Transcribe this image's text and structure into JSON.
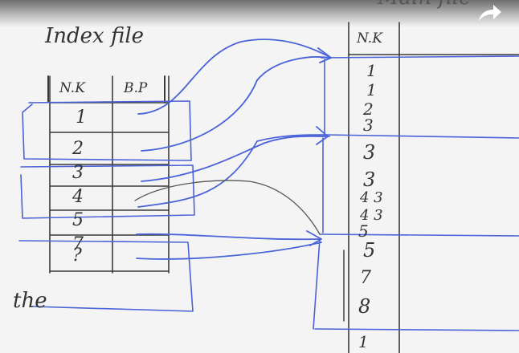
{
  "index_file": {
    "title": "Index file",
    "col1": "N.K",
    "col2": "B.P",
    "keys": [
      "1",
      "2",
      "3",
      "4",
      "5",
      "7",
      "?"
    ]
  },
  "main_file": {
    "title": "Main file",
    "col1": "N.K",
    "keys": [
      "1",
      "1",
      "2",
      "3",
      "3",
      "3",
      "4 3",
      "4 3",
      "5",
      "5",
      "7",
      "8",
      "1"
    ]
  },
  "note": "the",
  "colors": {
    "ink": "#3a3a3a",
    "pen_blue": "#4a63d8",
    "paper": "#f4f4f4",
    "pencil": "#555555"
  },
  "icons": {
    "share": "share-arrow-icon"
  }
}
